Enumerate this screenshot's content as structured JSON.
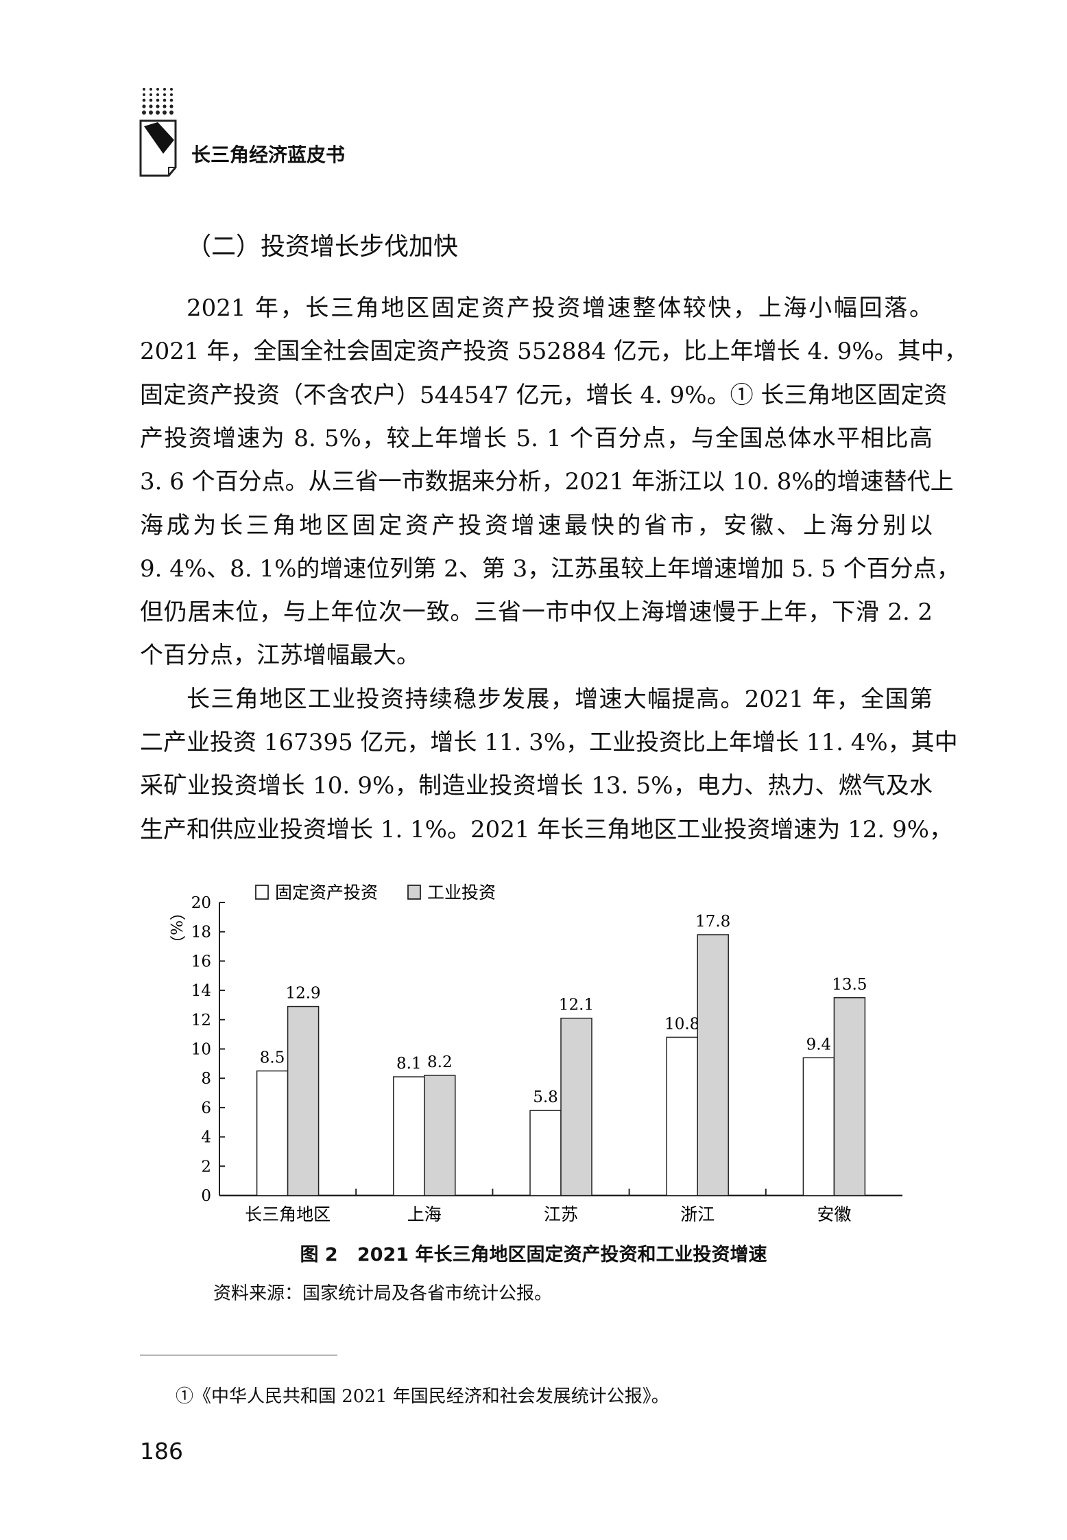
{
  "header": {
    "book_title": "长三角经济蓝皮书",
    "logo_icon": "book-logo-icon"
  },
  "section_heading": "（二）投资增长步伐加快",
  "paragraphs": [
    {
      "lines": [
        "2021 年，长三角地区固定资产投资增速整体较快，上海小幅回落。",
        "2021 年，全国全社会固定资产投资 552884 亿元，比上年增长 4. 9%。其中，",
        "固定资产投资（不含农户）544547 亿元，增长 4. 9%。① 长三角地区固定资",
        "产投资增速为 8. 5%，较上年增长 5. 1 个百分点，与全国总体水平相比高",
        "3. 6 个百分点。从三省一市数据来分析，2021 年浙江以 10. 8%的增速替代上",
        "海成为长三角地区固定资产投资增速最快的省市，安徽、上海分别以",
        "9. 4%、8. 1%的增速位列第 2、第 3，江苏虽较上年增速增加 5. 5 个百分点，",
        "但仍居末位，与上年位次一致。三省一市中仅上海增速慢于上年，下滑 2. 2",
        "个百分点，江苏增幅最大。"
      ]
    },
    {
      "lines": [
        "长三角地区工业投资持续稳步发展，增速大幅提高。2021 年，全国第",
        "二产业投资 167395 亿元，增长 11. 3%，工业投资比上年增长 11. 4%，其中",
        "采矿业投资增长 10. 9%，制造业投资增长 13. 5%，电力、热力、燃气及水",
        "生产和供应业投资增长 1. 1%。2021 年长三角地区工业投资增速为 12. 9%，"
      ]
    }
  ],
  "chart_data": {
    "type": "bar",
    "categories": [
      "长三角地区",
      "上海",
      "江苏",
      "浙江",
      "安徽"
    ],
    "series": [
      {
        "name": "固定资产投资",
        "values": [
          8.5,
          8.1,
          5.8,
          10.8,
          9.4
        ],
        "color": "#ffffff"
      },
      {
        "name": "工业投资",
        "values": [
          12.9,
          8.2,
          12.1,
          17.8,
          13.5
        ],
        "color": "#d3d3d3"
      }
    ],
    "ylabel": "（%）",
    "ylim": [
      0,
      20
    ],
    "yticks": [
      0,
      2,
      4,
      6,
      8,
      10,
      12,
      14,
      16,
      18,
      20
    ],
    "legend": "top-left",
    "grid": false
  },
  "caption": {
    "label": "图 2",
    "title": "2021 年长三角地区固定资产投资和工业投资增速"
  },
  "source": "资料来源：国家统计局及各省市统计公报。",
  "footnote": "①《中华人民共和国 2021 年国民经济和社会发展统计公报》。",
  "page_number": "186"
}
